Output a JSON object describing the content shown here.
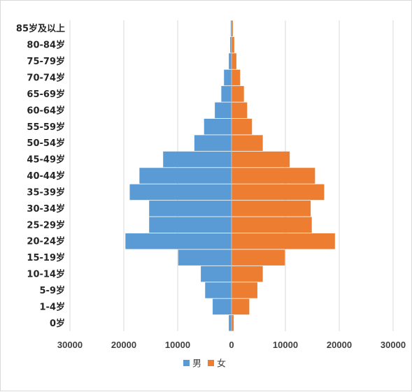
{
  "chart_data": {
    "type": "bar",
    "orientation": "horizontal",
    "layout": "population-pyramid",
    "categories": [
      "0岁",
      "1-4岁",
      "5-9岁",
      "10-14岁",
      "15-19岁",
      "20-24岁",
      "25-29岁",
      "30-34岁",
      "35-39岁",
      "40-44岁",
      "45-49岁",
      "50-54岁",
      "55-59岁",
      "60-64岁",
      "65-69岁",
      "70-74岁",
      "75-79岁",
      "80-84岁",
      "85岁及以上"
    ],
    "series": [
      {
        "name": "男",
        "color": "#5B9BD5",
        "side": "left",
        "values": [
          500,
          3500,
          4900,
          5700,
          9900,
          19700,
          15300,
          15300,
          18900,
          17100,
          12700,
          6900,
          5100,
          3100,
          1900,
          1400,
          500,
          250,
          150
        ]
      },
      {
        "name": "女",
        "color": "#ED7D31",
        "side": "right",
        "values": [
          400,
          3300,
          4800,
          5800,
          9900,
          19200,
          14900,
          14700,
          17200,
          15500,
          10800,
          5800,
          3800,
          2900,
          2300,
          1600,
          900,
          500,
          250
        ]
      }
    ],
    "xlim": [
      -30000,
      30000
    ],
    "xticks": [
      -30000,
      -20000,
      -10000,
      0,
      10000,
      20000,
      30000
    ],
    "xtick_labels": [
      "30000",
      "20000",
      "10000",
      "0",
      "10000",
      "20000",
      "30000"
    ],
    "title": "",
    "xlabel": "",
    "ylabel": "",
    "grid": "vertical",
    "legend": "bottom-center",
    "colors": {
      "gridline": "#d9d9d9",
      "center_axis": "#bfbfbf"
    }
  }
}
